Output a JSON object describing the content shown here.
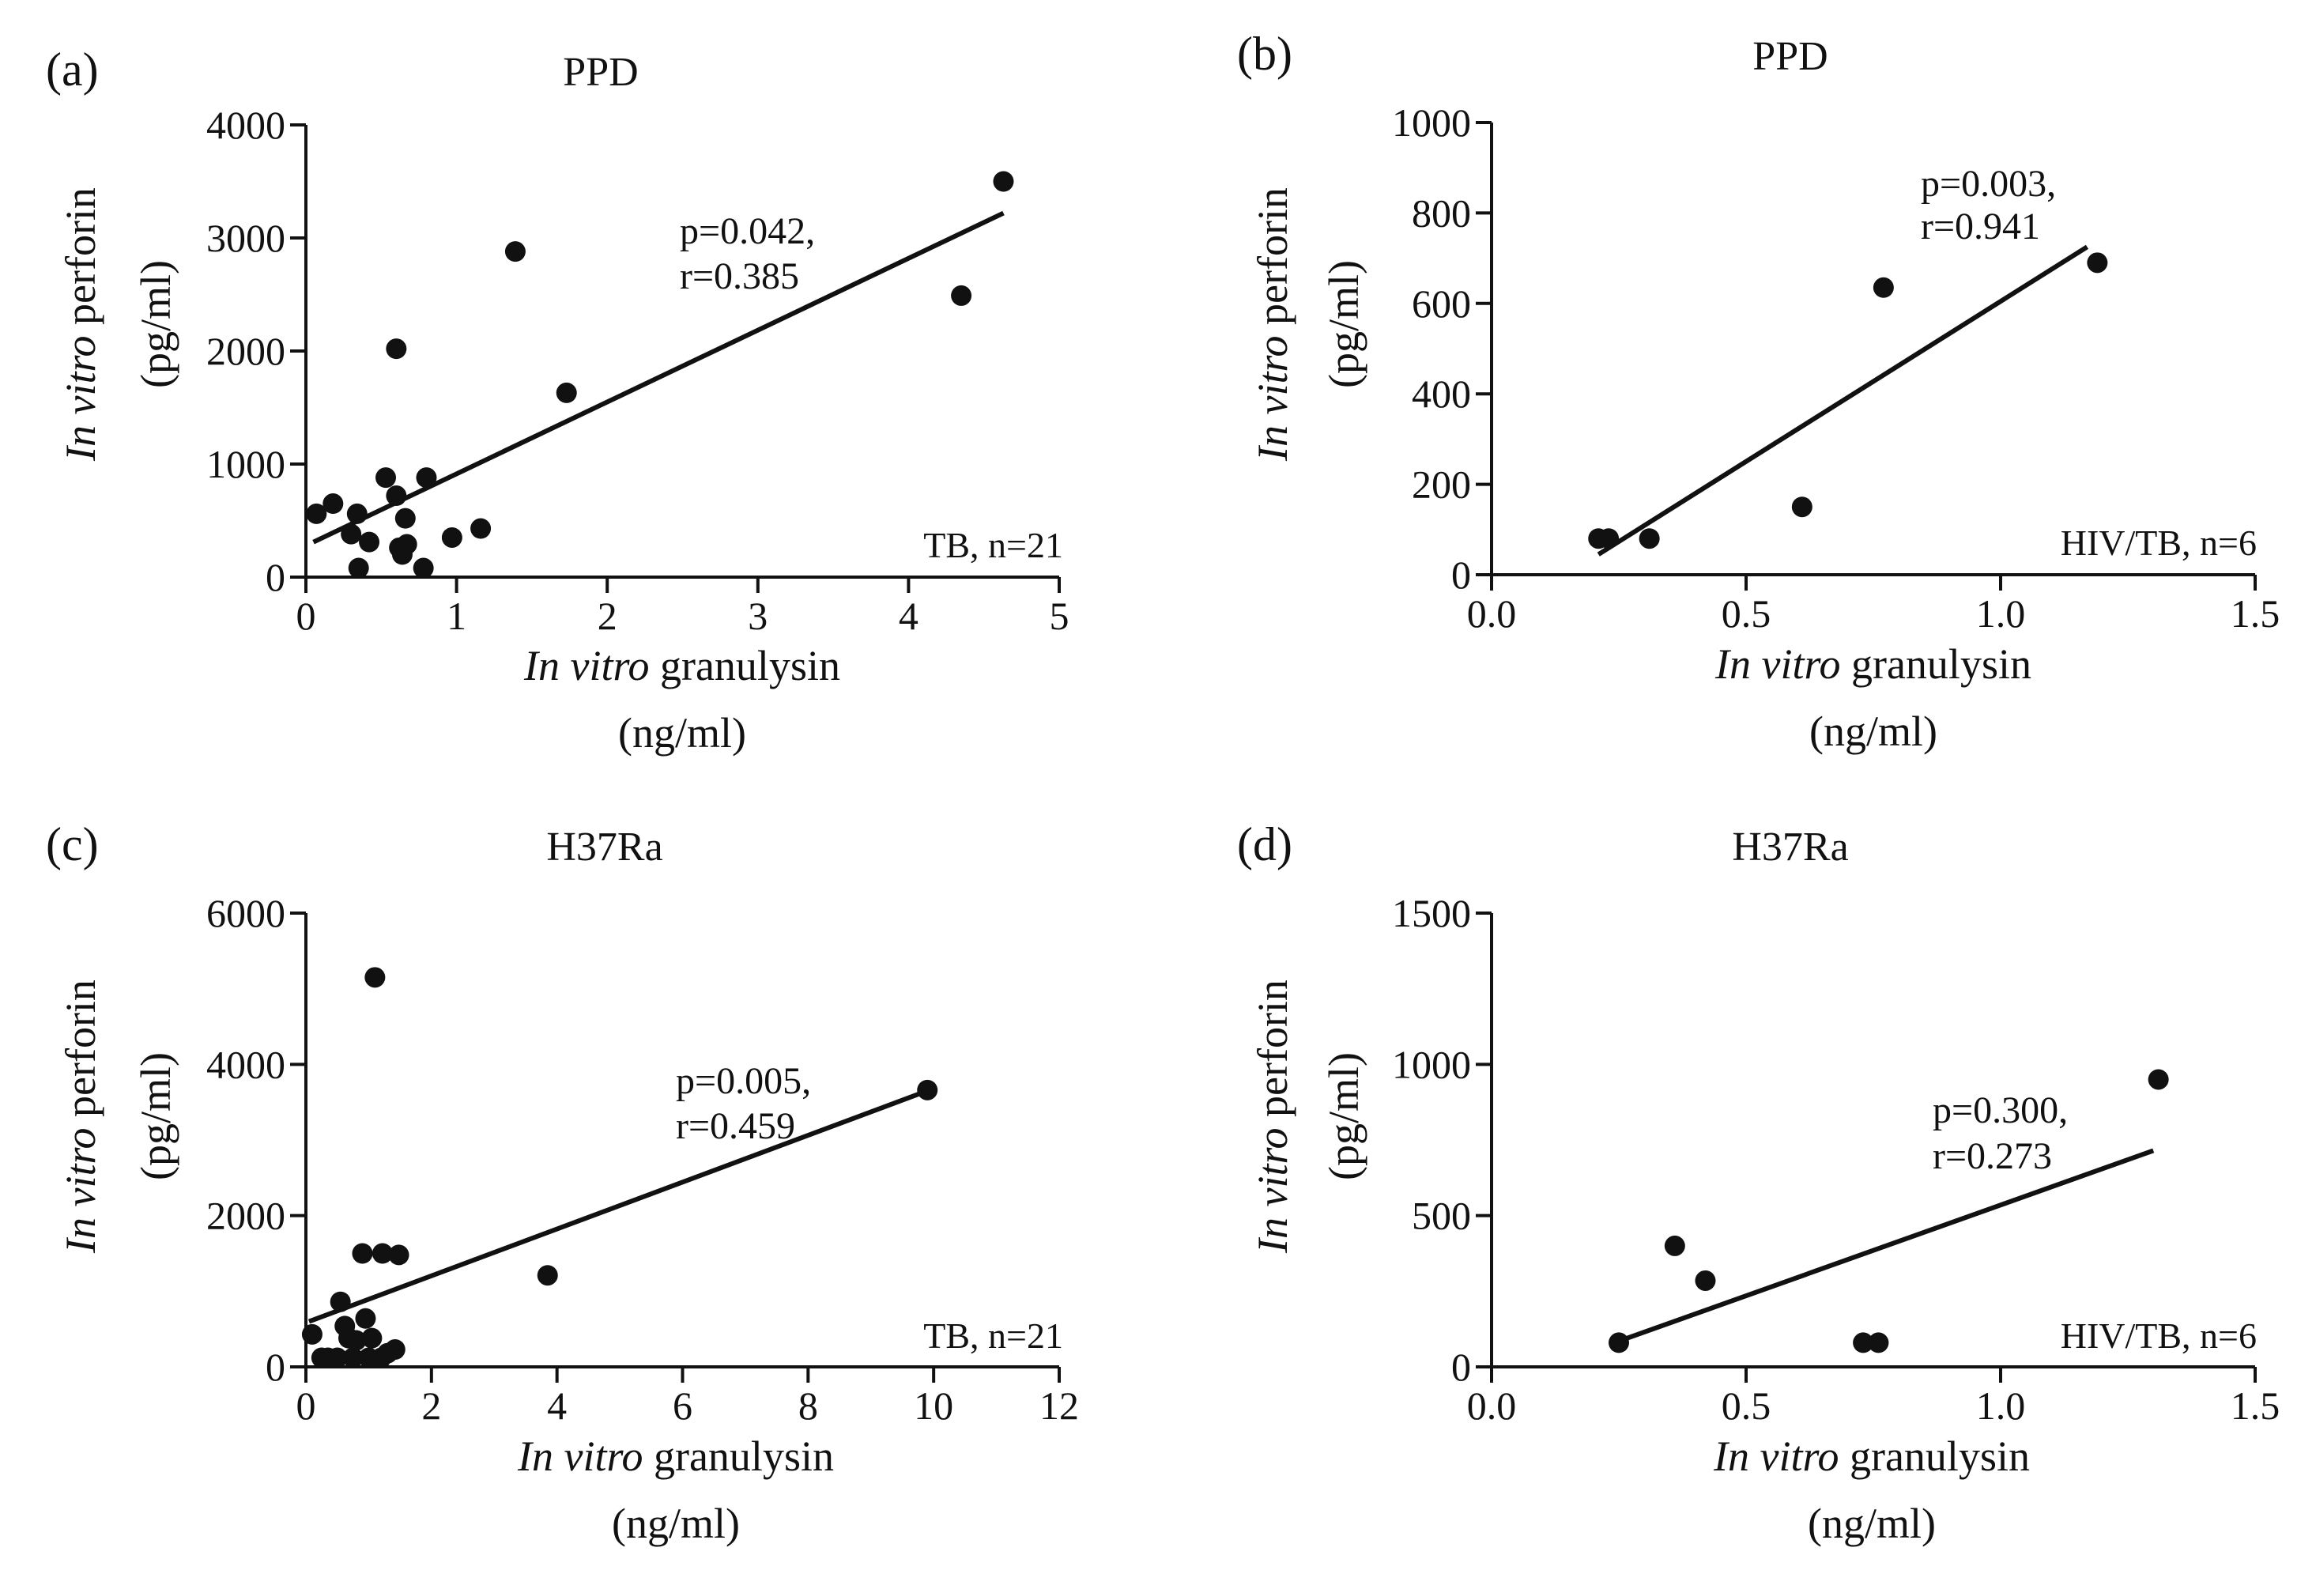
{
  "chart_data": [
    {
      "type": "scatter",
      "panel_letter": "(a)",
      "title": "PPD",
      "xlabel_italic": "In vitro",
      "xlabel_rest": " granulysin",
      "xunit": "(ng/ml)",
      "ylabel_italic": "In vitro",
      "ylabel_rest": " perforin",
      "yunit": "(pg/ml)",
      "xlim": [
        0,
        5
      ],
      "ylim": [
        0,
        4000
      ],
      "xticks": [
        0,
        1,
        2,
        3,
        4,
        5
      ],
      "xtick_labels": [
        "0",
        "1",
        "2",
        "3",
        "4",
        "5"
      ],
      "yticks": [
        0,
        1000,
        2000,
        3000,
        4000
      ],
      "ytick_labels": [
        "0",
        "1000",
        "2000",
        "3000",
        "4000"
      ],
      "points": [
        {
          "x": 0.07,
          "y": 560
        },
        {
          "x": 0.18,
          "y": 650
        },
        {
          "x": 0.3,
          "y": 380
        },
        {
          "x": 0.34,
          "y": 560
        },
        {
          "x": 0.35,
          "y": 80
        },
        {
          "x": 0.42,
          "y": 310
        },
        {
          "x": 0.53,
          "y": 880
        },
        {
          "x": 0.6,
          "y": 720
        },
        {
          "x": 0.6,
          "y": 2020
        },
        {
          "x": 0.62,
          "y": 260
        },
        {
          "x": 0.64,
          "y": 200
        },
        {
          "x": 0.67,
          "y": 290
        },
        {
          "x": 0.66,
          "y": 520
        },
        {
          "x": 0.78,
          "y": 80
        },
        {
          "x": 0.8,
          "y": 880
        },
        {
          "x": 0.97,
          "y": 350
        },
        {
          "x": 1.16,
          "y": 430
        },
        {
          "x": 1.39,
          "y": 2880
        },
        {
          "x": 1.73,
          "y": 1630
        },
        {
          "x": 4.35,
          "y": 2490
        },
        {
          "x": 4.63,
          "y": 3500
        }
      ],
      "fit_line": {
        "x1": 0.05,
        "y1": 310,
        "x2": 4.63,
        "y2": 3220
      },
      "stat_p": "p=0.042,",
      "stat_r": "r=0.385",
      "group_label": "TB, n=21"
    },
    {
      "type": "scatter",
      "panel_letter": "(b)",
      "title": "PPD",
      "xlabel_italic": "In vitro",
      "xlabel_rest": " granulysin",
      "xunit": "(ng/ml)",
      "ylabel_italic": "In vitro",
      "ylabel_rest": " perforin",
      "yunit": "(pg/ml)",
      "xlim": [
        0,
        1.5
      ],
      "ylim": [
        0,
        1000
      ],
      "xticks": [
        0,
        0.5,
        1,
        1.5
      ],
      "xtick_labels": [
        "0.0",
        "0.5",
        "1.0",
        "1.5"
      ],
      "yticks": [
        0,
        200,
        400,
        600,
        800,
        1000
      ],
      "ytick_labels": [
        "0",
        "200",
        "400",
        "600",
        "800",
        "1000"
      ],
      "points": [
        {
          "x": 0.21,
          "y": 80
        },
        {
          "x": 0.23,
          "y": 80
        },
        {
          "x": 0.31,
          "y": 80
        },
        {
          "x": 0.61,
          "y": 150
        },
        {
          "x": 0.77,
          "y": 635
        },
        {
          "x": 1.19,
          "y": 690
        }
      ],
      "fit_line": {
        "x1": 0.21,
        "y1": 45,
        "x2": 1.17,
        "y2": 725
      },
      "stat_p": "p=0.003,",
      "stat_r": "r=0.941",
      "group_label": "HIV/TB, n=6"
    },
    {
      "type": "scatter",
      "panel_letter": "(c)",
      "title": "H37Ra",
      "xlabel_italic": "In vitro",
      "xlabel_rest": " granulysin",
      "xunit": "(ng/ml)",
      "ylabel_italic": "In vitro",
      "ylabel_rest": " perforin",
      "yunit": "(pg/ml)",
      "xlim": [
        0,
        12
      ],
      "ylim": [
        0,
        6000
      ],
      "xticks": [
        0,
        2,
        4,
        6,
        8,
        10,
        12
      ],
      "xtick_labels": [
        "0",
        "2",
        "4",
        "6",
        "8",
        "10",
        "12"
      ],
      "yticks": [
        0,
        2000,
        4000,
        6000
      ],
      "ytick_labels": [
        "0",
        "2000",
        "4000",
        "6000"
      ],
      "points": [
        {
          "x": 0.1,
          "y": 430
        },
        {
          "x": 0.25,
          "y": 120
        },
        {
          "x": 0.35,
          "y": 120
        },
        {
          "x": 0.5,
          "y": 120
        },
        {
          "x": 0.55,
          "y": 860
        },
        {
          "x": 0.62,
          "y": 540
        },
        {
          "x": 0.68,
          "y": 380
        },
        {
          "x": 0.75,
          "y": 120
        },
        {
          "x": 0.8,
          "y": 350
        },
        {
          "x": 0.9,
          "y": 1500
        },
        {
          "x": 0.95,
          "y": 640
        },
        {
          "x": 1.0,
          "y": 120
        },
        {
          "x": 1.05,
          "y": 380
        },
        {
          "x": 1.1,
          "y": 5150
        },
        {
          "x": 1.2,
          "y": 120
        },
        {
          "x": 1.22,
          "y": 1500
        },
        {
          "x": 1.3,
          "y": 180
        },
        {
          "x": 1.42,
          "y": 230
        },
        {
          "x": 1.48,
          "y": 1480
        },
        {
          "x": 3.85,
          "y": 1210
        },
        {
          "x": 9.9,
          "y": 3660
        }
      ],
      "fit_line": {
        "x1": 0.05,
        "y1": 600,
        "x2": 9.9,
        "y2": 3650
      },
      "stat_p": "p=0.005,",
      "stat_r": "r=0.459",
      "group_label": "TB, n=21"
    },
    {
      "type": "scatter",
      "panel_letter": "(d)",
      "title": "H37Ra",
      "xlabel_italic": "In vitro",
      "xlabel_rest": " granulysin",
      "xunit": "(ng/ml)",
      "ylabel_italic": "In vitro",
      "ylabel_rest": " perforin",
      "yunit": "(pg/ml)",
      "xlim": [
        0,
        1.5
      ],
      "ylim": [
        0,
        1500
      ],
      "xticks": [
        0,
        0.5,
        1,
        1.5
      ],
      "xtick_labels": [
        "0.0",
        "0.5",
        "1.0",
        "1.5"
      ],
      "yticks": [
        0,
        500,
        1000,
        1500
      ],
      "ytick_labels": [
        "0",
        "500",
        "1000",
        "1500"
      ],
      "points": [
        {
          "x": 0.25,
          "y": 80
        },
        {
          "x": 0.36,
          "y": 400
        },
        {
          "x": 0.42,
          "y": 285
        },
        {
          "x": 0.73,
          "y": 80
        },
        {
          "x": 0.76,
          "y": 80
        },
        {
          "x": 1.31,
          "y": 950
        }
      ],
      "fit_line": {
        "x1": 0.25,
        "y1": 85,
        "x2": 1.3,
        "y2": 715
      },
      "stat_p": "p=0.300,",
      "stat_r": "r=0.273",
      "group_label": "HIV/TB, n=6"
    }
  ]
}
